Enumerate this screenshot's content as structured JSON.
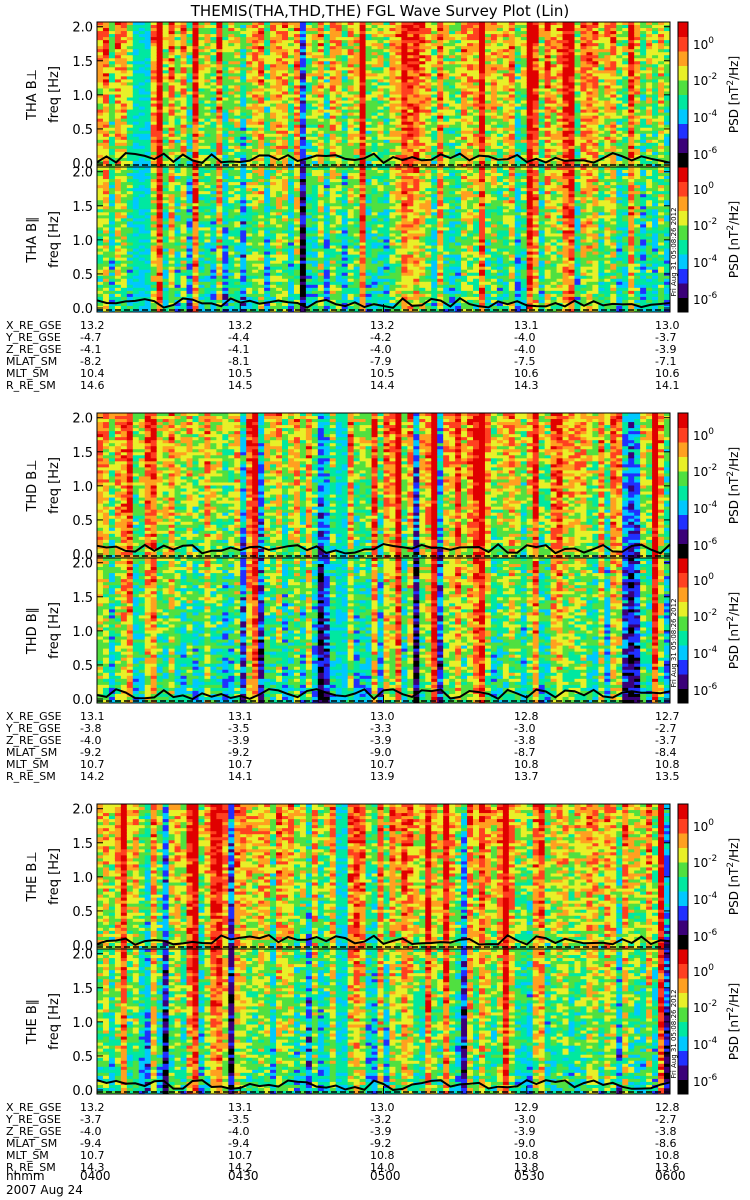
{
  "title": "THEMIS(THA,THD,THE) FGL Wave Survey Plot (Lin)",
  "y_axis_label": "freq [Hz]",
  "colorbar": {
    "label": "PSD [nT²/Hz]",
    "label_main": "PSD [nT",
    "label_sup": "2",
    "label_tail": "/Hz]",
    "scale": "log",
    "tick_bases": [
      "10",
      "10",
      "10",
      "10"
    ],
    "tick_exponents": [
      "0",
      "-2",
      "-4",
      "-6"
    ],
    "colors": [
      "#000000",
      "#3a0078",
      "#2030ff",
      "#00c8ff",
      "#00e8a0",
      "#50e040",
      "#e8f028",
      "#ffa020",
      "#ff4020",
      "#e00000"
    ]
  },
  "date_label": "2007 Aug 24",
  "hhmm_label": "hhmm",
  "time_ticks": [
    "0400",
    "0430",
    "0500",
    "0530",
    "0600"
  ],
  "freq_ticks": [
    "0.0",
    "0.5",
    "1.0",
    "1.5",
    "2.0"
  ],
  "stamp_text": "Fri Aug 31 05:08:26 2012",
  "chart_data": [
    {
      "type": "heatmap",
      "probe": "THA",
      "panels": [
        {
          "label": "THA B⊥",
          "component": "perp"
        },
        {
          "label": "THA B∥",
          "component": "par"
        }
      ],
      "x_range_hhmm": [
        "0400",
        "0600"
      ],
      "ylim": [
        0,
        2.0
      ],
      "ephemeris": [
        {
          "label": "X_RE_GSE",
          "values": [
            "13.2",
            "13.2",
            "13.2",
            "13.1",
            "13.0"
          ]
        },
        {
          "label": "Y_RE_GSE",
          "values": [
            "-4.7",
            "-4.4",
            "-4.2",
            "-4.0",
            "-3.7"
          ]
        },
        {
          "label": "Z_RE_GSE",
          "values": [
            "-4.1",
            "-4.1",
            "-4.0",
            "-4.0",
            "-3.9"
          ]
        },
        {
          "label": "MLAT_SM",
          "values": [
            "-8.2",
            "-8.1",
            "-7.9",
            "-7.5",
            "-7.1"
          ]
        },
        {
          "label": "MLT_SM",
          "values": [
            "10.4",
            "10.5",
            "10.5",
            "10.6",
            "10.6"
          ]
        },
        {
          "label": "R_RE_SM",
          "values": [
            "14.6",
            "14.5",
            "14.4",
            "14.3",
            "14.1"
          ]
        }
      ]
    },
    {
      "type": "heatmap",
      "probe": "THD",
      "panels": [
        {
          "label": "THD B⊥",
          "component": "perp"
        },
        {
          "label": "THD B∥",
          "component": "par"
        }
      ],
      "x_range_hhmm": [
        "0400",
        "0600"
      ],
      "ylim": [
        0,
        2.0
      ],
      "ephemeris": [
        {
          "label": "X_RE_GSE",
          "values": [
            "13.1",
            "13.1",
            "13.0",
            "12.8",
            "12.7"
          ]
        },
        {
          "label": "Y_RE_GSE",
          "values": [
            "-3.8",
            "-3.5",
            "-3.3",
            "-3.0",
            "-2.7"
          ]
        },
        {
          "label": "Z_RE_GSE",
          "values": [
            "-4.0",
            "-3.9",
            "-3.9",
            "-3.8",
            "-3.7"
          ]
        },
        {
          "label": "MLAT_SM",
          "values": [
            "-9.2",
            "-9.2",
            "-9.0",
            "-8.7",
            "-8.4"
          ]
        },
        {
          "label": "MLT_SM",
          "values": [
            "10.7",
            "10.7",
            "10.7",
            "10.8",
            "10.8"
          ]
        },
        {
          "label": "R_RE_SM",
          "values": [
            "14.2",
            "14.1",
            "13.9",
            "13.7",
            "13.5"
          ]
        }
      ]
    },
    {
      "type": "heatmap",
      "probe": "THE",
      "panels": [
        {
          "label": "THE B⊥",
          "component": "perp"
        },
        {
          "label": "THE B∥",
          "component": "par"
        }
      ],
      "x_range_hhmm": [
        "0400",
        "0600"
      ],
      "ylim": [
        0,
        2.0
      ],
      "ephemeris": [
        {
          "label": "X_RE_GSE",
          "values": [
            "13.2",
            "13.1",
            "13.0",
            "12.9",
            "12.8"
          ]
        },
        {
          "label": "Y_RE_GSE",
          "values": [
            "-3.7",
            "-3.5",
            "-3.2",
            "-3.0",
            "-2.7"
          ]
        },
        {
          "label": "Z_RE_GSE",
          "values": [
            "-4.0",
            "-4.0",
            "-3.9",
            "-3.9",
            "-3.8"
          ]
        },
        {
          "label": "MLAT_SM",
          "values": [
            "-9.4",
            "-9.4",
            "-9.2",
            "-9.0",
            "-8.6"
          ]
        },
        {
          "label": "MLT_SM",
          "values": [
            "10.7",
            "10.7",
            "10.8",
            "10.8",
            "10.8"
          ]
        },
        {
          "label": "R_RE_SM",
          "values": [
            "14.3",
            "14.2",
            "14.0",
            "13.8",
            "13.6"
          ]
        }
      ]
    }
  ]
}
